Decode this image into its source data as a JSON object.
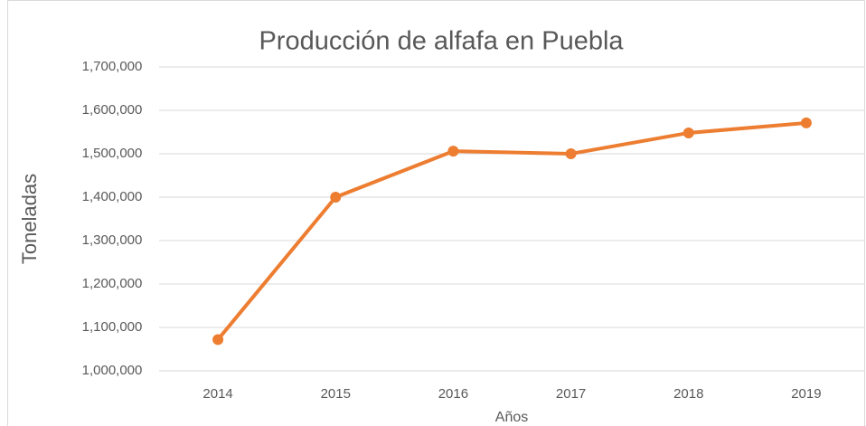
{
  "chart_data": {
    "type": "line",
    "title": "Producción de alfafa en Puebla",
    "x_label": "Años",
    "y_label": "Toneladas",
    "categories": [
      "2014",
      "2015",
      "2016",
      "2017",
      "2018",
      "2019"
    ],
    "series": [
      {
        "name": "Toneladas",
        "color": "#ed7d31",
        "values": [
          1072000,
          1400000,
          1506000,
          1500000,
          1548000,
          1571000
        ]
      }
    ],
    "ylim": [
      1000000,
      1700000
    ],
    "yticks": [
      {
        "value": 1000000,
        "label": "1,000,000"
      },
      {
        "value": 1100000,
        "label": "1,100,000"
      },
      {
        "value": 1200000,
        "label": "1,200,000"
      },
      {
        "value": 1300000,
        "label": "1,300,000"
      },
      {
        "value": 1400000,
        "label": "1,400,000"
      },
      {
        "value": 1500000,
        "label": "1,500,000"
      },
      {
        "value": 1600000,
        "label": "1,600,000"
      },
      {
        "value": 1700000,
        "label": "1,700,000"
      }
    ],
    "grid": true
  }
}
